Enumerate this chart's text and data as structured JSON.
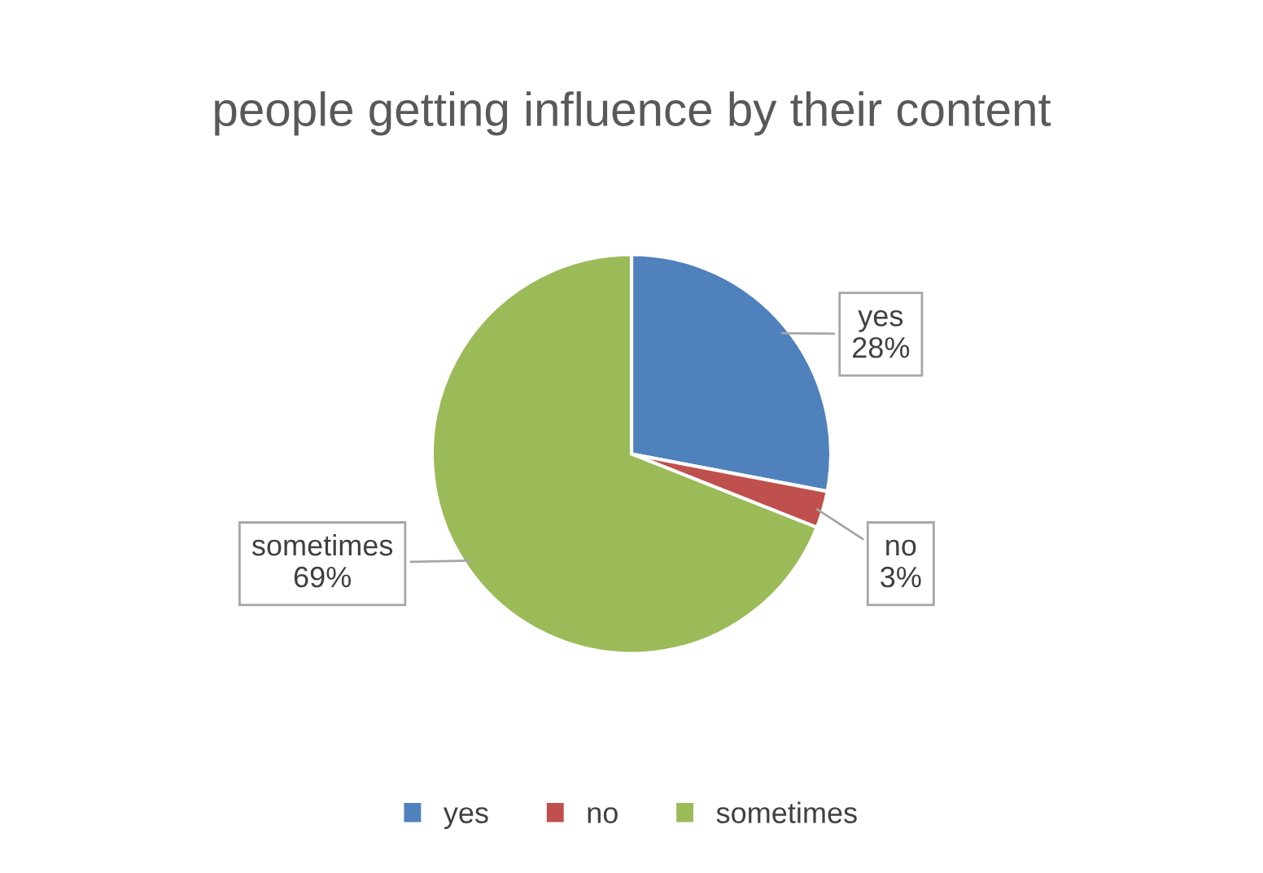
{
  "chart_data": {
    "type": "pie",
    "title": "people getting influence by their content",
    "categories": [
      "yes",
      "no",
      "sometimes"
    ],
    "values": [
      28,
      3,
      69
    ],
    "colors": [
      "#4f81bd",
      "#c0504d",
      "#9bbb59"
    ],
    "value_labels": [
      "28%",
      "3%",
      "69%"
    ],
    "legend": "bottom"
  }
}
